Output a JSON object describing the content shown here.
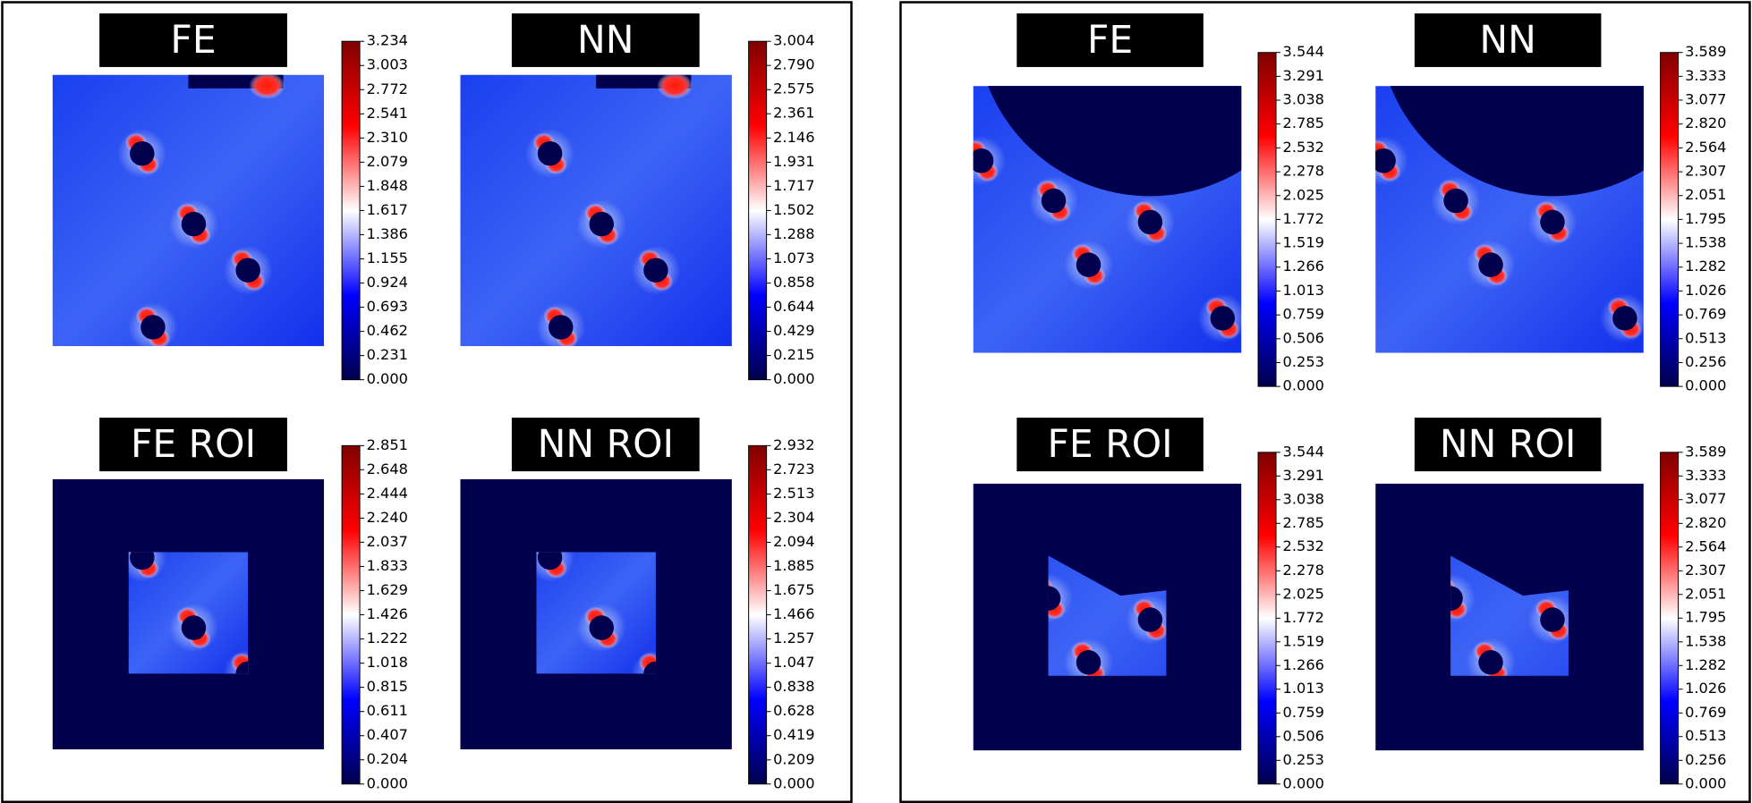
{
  "chart_data": [
    {
      "type": "heatmap",
      "title": "FE",
      "zlim": [
        0,
        3.234
      ],
      "zticks": [
        {
          "value": 0,
          "label": "0.000"
        },
        0.231,
        0.462,
        0.693,
        0.924,
        1.155,
        1.386,
        1.617,
        1.848,
        2.079,
        {
          "value": 2.31,
          "label": "2.310"
        },
        2.541,
        2.772,
        3.003,
        3.234
      ]
    },
    {
      "type": "heatmap",
      "title": "NN",
      "zlim": [
        0,
        3.004
      ],
      "zticks": [
        {
          "value": 0,
          "label": "0.000"
        },
        0.215,
        0.429,
        0.644,
        0.858,
        1.073,
        1.288,
        1.502,
        1.717,
        1.931,
        2.146,
        2.361,
        2.575,
        {
          "value": 2.79,
          "label": "2.790"
        },
        3.004
      ]
    },
    {
      "type": "heatmap",
      "title": "FE ROI",
      "zlim": [
        0,
        2.851
      ],
      "zticks": [
        {
          "value": 0,
          "label": "0.000"
        },
        0.204,
        0.407,
        0.611,
        0.815,
        1.018,
        1.222,
        1.426,
        1.629,
        1.833,
        2.037,
        {
          "value": 2.24,
          "label": "2.240"
        },
        2.444,
        2.648,
        2.851
      ]
    },
    {
      "type": "heatmap",
      "title": "NN ROI",
      "zlim": [
        0,
        2.932
      ],
      "zticks": [
        {
          "value": 0,
          "label": "0.000"
        },
        0.209,
        0.419,
        0.628,
        0.838,
        1.047,
        1.257,
        1.466,
        1.675,
        1.885,
        2.094,
        2.304,
        2.513,
        2.723,
        2.932
      ]
    },
    {
      "type": "heatmap",
      "title": "FE",
      "zlim": [
        0,
        3.544
      ],
      "zticks": [
        {
          "value": 0,
          "label": "0.000"
        },
        0.253,
        0.506,
        0.759,
        1.013,
        1.266,
        1.519,
        1.772,
        2.025,
        2.278,
        2.532,
        2.785,
        3.038,
        3.291,
        3.544
      ]
    },
    {
      "type": "heatmap",
      "title": "NN",
      "zlim": [
        0,
        3.589
      ],
      "zticks": [
        {
          "value": 0,
          "label": "0.000"
        },
        0.256,
        0.513,
        0.769,
        1.026,
        1.282,
        1.538,
        1.795,
        2.051,
        2.307,
        2.564,
        {
          "value": 2.82,
          "label": "2.820"
        },
        3.077,
        3.333,
        3.589
      ]
    },
    {
      "type": "heatmap",
      "title": "FE ROI",
      "zlim": [
        0,
        3.544
      ],
      "zticks": [
        {
          "value": 0,
          "label": "0.000"
        },
        0.253,
        0.506,
        0.759,
        1.013,
        1.266,
        1.519,
        1.772,
        2.025,
        2.278,
        2.532,
        2.785,
        3.038,
        3.291,
        3.544
      ]
    },
    {
      "type": "heatmap",
      "title": "NN ROI",
      "zlim": [
        0,
        3.589
      ],
      "zticks": [
        {
          "value": 0,
          "label": "0.000"
        },
        0.256,
        0.513,
        0.769,
        1.026,
        1.282,
        1.538,
        1.795,
        2.051,
        2.307,
        2.564,
        {
          "value": 2.82,
          "label": "2.820"
        },
        3.077,
        3.333,
        3.589
      ]
    }
  ]
}
